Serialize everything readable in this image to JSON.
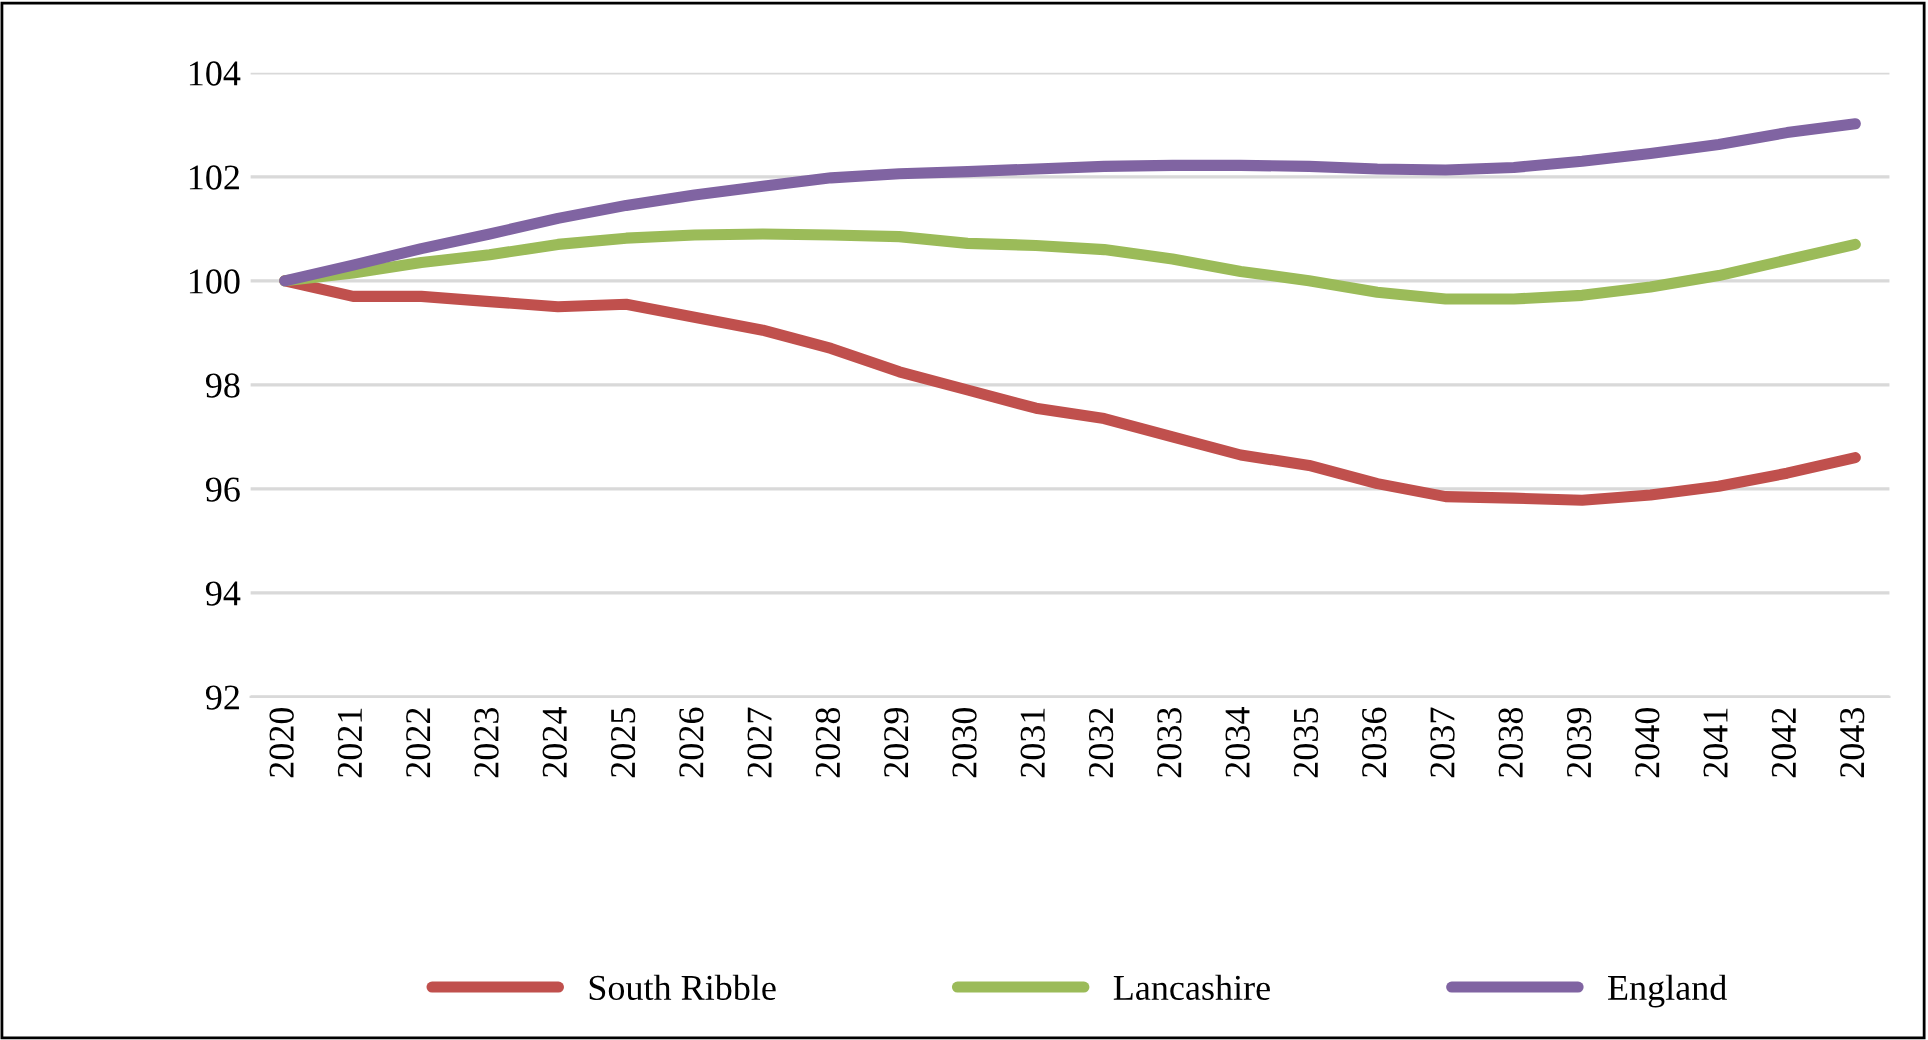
{
  "chart_data": {
    "type": "line",
    "categories": [
      "2020",
      "2021",
      "2022",
      "2023",
      "2024",
      "2025",
      "2026",
      "2027",
      "2028",
      "2029",
      "2030",
      "2031",
      "2032",
      "2033",
      "2034",
      "2035",
      "2036",
      "2037",
      "2038",
      "2039",
      "2040",
      "2041",
      "2042",
      "2043"
    ],
    "series": [
      {
        "name": "South Ribble",
        "color": "#c0504d",
        "values": [
          100,
          99.7,
          99.7,
          99.6,
          99.5,
          99.55,
          99.3,
          99.05,
          98.7,
          98.25,
          97.9,
          97.55,
          97.35,
          97.0,
          96.65,
          96.45,
          96.1,
          95.85,
          95.82,
          95.78,
          95.88,
          96.05,
          96.3,
          96.6
        ]
      },
      {
        "name": "Lancashire",
        "color": "#9bbb59",
        "values": [
          100,
          100.15,
          100.35,
          100.5,
          100.7,
          100.82,
          100.88,
          100.9,
          100.88,
          100.85,
          100.72,
          100.68,
          100.6,
          100.42,
          100.18,
          100.0,
          99.78,
          99.65,
          99.65,
          99.72,
          99.88,
          100.1,
          100.4,
          100.7
        ]
      },
      {
        "name": "England",
        "color": "#8064a2",
        "values": [
          100,
          100.3,
          100.62,
          100.9,
          101.2,
          101.45,
          101.65,
          101.82,
          101.98,
          102.06,
          102.1,
          102.15,
          102.2,
          102.22,
          102.22,
          102.2,
          102.15,
          102.13,
          102.18,
          102.3,
          102.45,
          102.62,
          102.85,
          103.02
        ]
      }
    ],
    "ylim": [
      92,
      104
    ],
    "yticks": [
      92,
      94,
      96,
      98,
      100,
      102,
      104
    ],
    "grid": "y",
    "legend": "bottom",
    "marker": "none",
    "line_style": "solid"
  }
}
